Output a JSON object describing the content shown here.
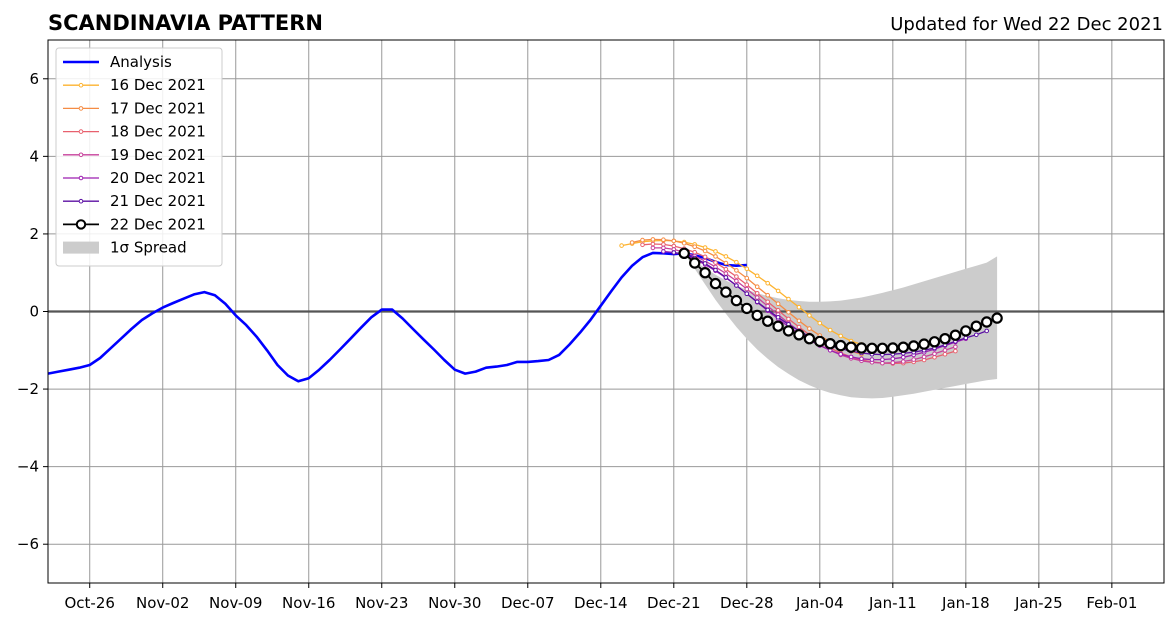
{
  "chart_data": {
    "type": "line",
    "title": "SCANDINAVIA PATTERN",
    "subtitle": "Updated for Wed 22 Dec 2021",
    "xlabel": "",
    "ylabel": "",
    "xlim": [
      "2021-10-22",
      "2022-02-06"
    ],
    "ylim": [
      -7,
      7
    ],
    "grid": true,
    "legend_placement": "top-left",
    "x_ticks": [
      "Oct-26",
      "Nov-02",
      "Nov-09",
      "Nov-16",
      "Nov-23",
      "Nov-30",
      "Dec-07",
      "Dec-14",
      "Dec-21",
      "Dec-28",
      "Jan-04",
      "Jan-11",
      "Jan-18",
      "Jan-25",
      "Feb-01"
    ],
    "x_tick_dates": [
      "2021-10-26",
      "2021-11-02",
      "2021-11-09",
      "2021-11-16",
      "2021-11-23",
      "2021-11-30",
      "2021-12-07",
      "2021-12-14",
      "2021-12-21",
      "2021-12-28",
      "2022-01-04",
      "2022-01-11",
      "2022-01-18",
      "2022-01-25",
      "2022-02-01"
    ],
    "y_ticks": [
      6,
      4,
      2,
      0,
      -2,
      -4,
      -6
    ],
    "y_tick_labels": [
      "6",
      "4",
      "2",
      "0",
      "−2",
      "−4",
      "−6"
    ],
    "analysis": {
      "name": "Analysis",
      "color": "#0000ff",
      "start": "2021-10-22",
      "values": [
        -1.6,
        -1.55,
        -1.5,
        -1.45,
        -1.38,
        -1.2,
        -0.95,
        -0.7,
        -0.45,
        -0.22,
        -0.05,
        0.1,
        0.22,
        0.33,
        0.44,
        0.5,
        0.42,
        0.2,
        -0.1,
        -0.35,
        -0.65,
        -1.0,
        -1.38,
        -1.65,
        -1.8,
        -1.72,
        -1.5,
        -1.25,
        -0.98,
        -0.7,
        -0.42,
        -0.15,
        0.05,
        0.05,
        -0.18,
        -0.45,
        -0.72,
        -0.98,
        -1.25,
        -1.5,
        -1.6,
        -1.55,
        -1.45,
        -1.42,
        -1.38,
        -1.3,
        -1.3,
        -1.28,
        -1.25,
        -1.12,
        -0.85,
        -0.55,
        -0.22,
        0.15,
        0.52,
        0.88,
        1.18,
        1.4,
        1.51,
        1.5,
        1.48,
        1.5,
        1.45,
        1.38,
        1.28,
        1.2,
        1.18,
        1.2
      ]
    },
    "forecasts": [
      {
        "name": "16 Dec 2021",
        "color": "#fdb32f",
        "start": "2021-12-16",
        "values": [
          1.7,
          1.75,
          1.8,
          1.82,
          1.83,
          1.82,
          1.79,
          1.73,
          1.65,
          1.55,
          1.42,
          1.27,
          1.1,
          0.92,
          0.73,
          0.53,
          0.32,
          0.11,
          -0.1,
          -0.3,
          -0.48,
          -0.63,
          -0.76,
          -0.85
        ]
      },
      {
        "name": "17 Dec 2021",
        "color": "#f58c44",
        "start": "2021-12-17",
        "values": [
          1.78,
          1.84,
          1.86,
          1.85,
          1.82,
          1.76,
          1.67,
          1.56,
          1.42,
          1.25,
          1.06,
          0.86,
          0.64,
          0.42,
          0.2,
          -0.02,
          -0.24,
          -0.44,
          -0.62,
          -0.78,
          -0.92,
          -1.03,
          -1.1
        ]
      },
      {
        "name": "18 Dec 2021",
        "color": "#e8616e",
        "start": "2021-12-18",
        "values": [
          1.72,
          1.74,
          1.73,
          1.69,
          1.62,
          1.53,
          1.41,
          1.26,
          1.09,
          0.9,
          0.69,
          0.47,
          0.25,
          0.03,
          -0.19,
          -0.4,
          -0.6,
          -0.78,
          -0.94,
          -1.07,
          -1.17,
          -1.25,
          -1.3,
          -1.33,
          -1.34,
          -1.33,
          -1.3,
          -1.25,
          -1.18,
          -1.1,
          -1.02
        ]
      },
      {
        "name": "19 Dec 2021",
        "color": "#c7419b",
        "start": "2021-12-19",
        "values": [
          1.64,
          1.64,
          1.6,
          1.53,
          1.43,
          1.3,
          1.15,
          0.98,
          0.79,
          0.58,
          0.36,
          0.14,
          -0.08,
          -0.3,
          -0.5,
          -0.69,
          -0.86,
          -1.0,
          -1.12,
          -1.21,
          -1.27,
          -1.31,
          -1.33,
          -1.32,
          -1.29,
          -1.24,
          -1.17,
          -1.09,
          -1.0,
          -0.91
        ]
      },
      {
        "name": "20 Dec 2021",
        "color": "#9c1fb0",
        "start": "2021-12-20",
        "values": [
          1.55,
          1.52,
          1.45,
          1.35,
          1.21,
          1.05,
          0.87,
          0.67,
          0.46,
          0.24,
          0.02,
          -0.19,
          -0.39,
          -0.57,
          -0.74,
          -0.88,
          -1.0,
          -1.1,
          -1.17,
          -1.22,
          -1.24,
          -1.24,
          -1.22,
          -1.18,
          -1.12,
          -1.05,
          -0.97,
          -0.88,
          -0.79,
          -0.7
        ]
      },
      {
        "name": "21 Dec 2021",
        "color": "#5b0fa3",
        "start": "2021-12-21",
        "values": [
          1.52,
          1.48,
          1.38,
          1.24,
          1.07,
          0.88,
          0.67,
          0.46,
          0.25,
          0.04,
          -0.15,
          -0.33,
          -0.5,
          -0.64,
          -0.77,
          -0.88,
          -0.96,
          -1.02,
          -1.07,
          -1.1,
          -1.11,
          -1.1,
          -1.08,
          -1.05,
          -1.0,
          -0.94,
          -0.86,
          -0.77,
          -0.68,
          -0.6,
          -0.5
        ]
      },
      {
        "name": "22 Dec 2021",
        "color": "#000000",
        "start": "2021-12-22",
        "values": [
          1.5,
          1.25,
          1.0,
          0.72,
          0.5,
          0.28,
          0.08,
          -0.1,
          -0.25,
          -0.38,
          -0.5,
          -0.6,
          -0.7,
          -0.77,
          -0.83,
          -0.88,
          -0.92,
          -0.94,
          -0.95,
          -0.95,
          -0.94,
          -0.92,
          -0.89,
          -0.84,
          -0.78,
          -0.7,
          -0.61,
          -0.5,
          -0.38,
          -0.27,
          -0.17
        ]
      }
    ],
    "spread": {
      "name": "1σ Spread",
      "color": "#cccccc",
      "start": "2021-12-22",
      "upper": [
        1.5,
        1.3,
        1.12,
        0.95,
        0.8,
        0.67,
        0.56,
        0.47,
        0.4,
        0.34,
        0.3,
        0.27,
        0.25,
        0.25,
        0.26,
        0.28,
        0.32,
        0.36,
        0.42,
        0.48,
        0.55,
        0.62,
        0.7,
        0.78,
        0.86,
        0.94,
        1.02,
        1.1,
        1.18,
        1.26,
        1.42
      ],
      "lower": [
        1.5,
        1.1,
        0.7,
        0.3,
        -0.06,
        -0.4,
        -0.7,
        -0.98,
        -1.22,
        -1.43,
        -1.61,
        -1.77,
        -1.9,
        -2.01,
        -2.1,
        -2.16,
        -2.21,
        -2.23,
        -2.24,
        -2.23,
        -2.2,
        -2.16,
        -2.12,
        -2.07,
        -2.02,
        -1.97,
        -1.92,
        -1.87,
        -1.82,
        -1.77,
        -1.74
      ]
    }
  }
}
